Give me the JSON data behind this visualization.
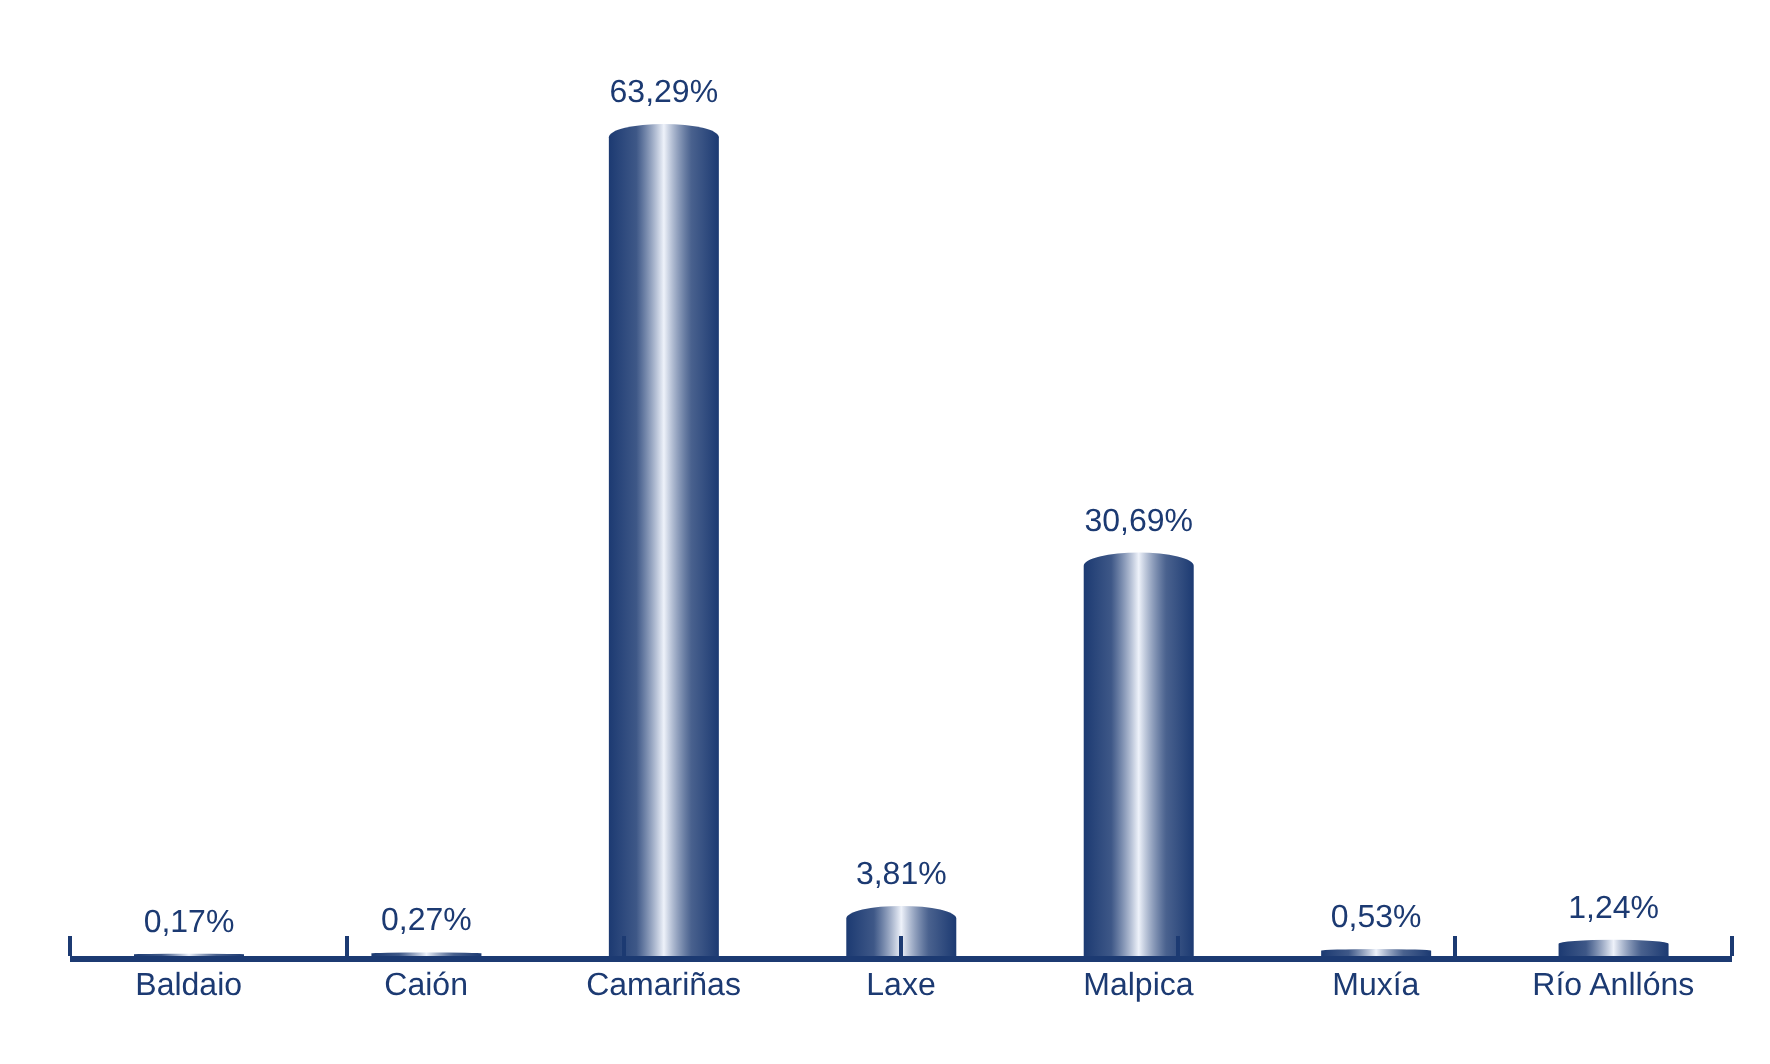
{
  "chart_data": {
    "type": "bar",
    "categories": [
      "Baldaio",
      "Caión",
      "Camariñas",
      "Laxe",
      "Malpica",
      "Muxía",
      "Río Anllóns"
    ],
    "values": [
      0.17,
      0.27,
      63.29,
      3.81,
      30.69,
      0.53,
      1.24
    ],
    "value_labels": [
      "0,17%",
      "0,27%",
      "63,29%",
      "3,81%",
      "30,69%",
      "0,53%",
      "1,24%"
    ],
    "color": "#1c3a72"
  }
}
